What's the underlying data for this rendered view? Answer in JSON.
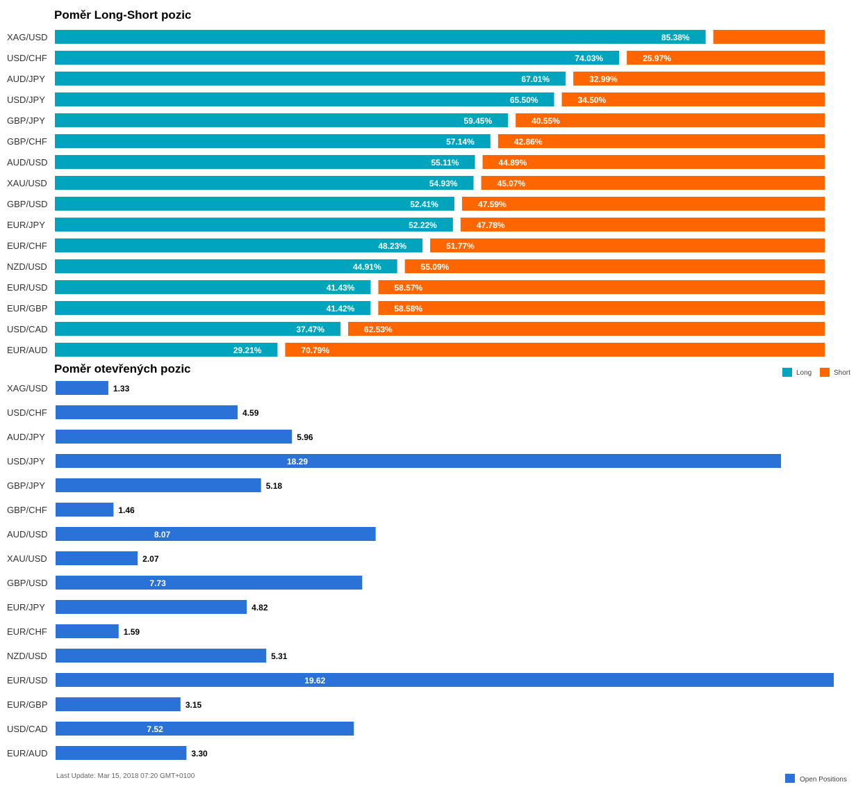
{
  "colors": {
    "long": "#00a5bd",
    "short": "#ff6600",
    "open": "#2a72d8"
  },
  "legend_ls": {
    "long": "Long",
    "short": "Short"
  },
  "legend_open": {
    "open": "Open Positions"
  },
  "footer": {
    "last_update": "Last Update: Mar 15, 2018 07:20 GMT+0100"
  },
  "chart_data": [
    {
      "type": "bar",
      "orientation": "horizontal",
      "stacked": true,
      "title": "Poměr Long-Short pozic",
      "categories": [
        "XAG/USD",
        "USD/CHF",
        "AUD/JPY",
        "USD/JPY",
        "GBP/JPY",
        "GBP/CHF",
        "AUD/USD",
        "XAU/USD",
        "GBP/USD",
        "EUR/JPY",
        "EUR/CHF",
        "NZD/USD",
        "EUR/USD",
        "EUR/GBP",
        "USD/CAD",
        "EUR/AUD"
      ],
      "series": [
        {
          "name": "Long",
          "values": [
            85.38,
            74.03,
            67.01,
            65.5,
            59.45,
            57.14,
            55.11,
            54.93,
            52.41,
            52.22,
            48.23,
            44.91,
            41.43,
            41.42,
            37.47,
            29.21
          ]
        },
        {
          "name": "Short",
          "values": [
            14.62,
            25.97,
            32.99,
            34.5,
            40.55,
            42.86,
            44.89,
            45.07,
            47.59,
            47.78,
            51.77,
            55.09,
            58.57,
            58.58,
            62.53,
            70.79
          ]
        }
      ],
      "show_short_label": [
        false,
        true,
        true,
        true,
        true,
        true,
        true,
        true,
        true,
        true,
        true,
        true,
        true,
        true,
        true,
        true
      ],
      "value_suffix": "%",
      "legend": "bottom-right"
    },
    {
      "type": "bar",
      "orientation": "horizontal",
      "title": "Poměr otevřených pozic",
      "categories": [
        "XAG/USD",
        "USD/CHF",
        "AUD/JPY",
        "USD/JPY",
        "GBP/JPY",
        "GBP/CHF",
        "AUD/USD",
        "XAU/USD",
        "GBP/USD",
        "EUR/JPY",
        "EUR/CHF",
        "NZD/USD",
        "EUR/USD",
        "EUR/GBP",
        "USD/CAD",
        "EUR/AUD"
      ],
      "series": [
        {
          "name": "Open Positions",
          "values": [
            1.33,
            4.59,
            5.96,
            18.29,
            5.18,
            1.46,
            8.07,
            2.07,
            7.73,
            4.82,
            1.59,
            5.31,
            19.62,
            3.15,
            7.52,
            3.3
          ]
        }
      ],
      "xlim": [
        0,
        19.62
      ],
      "legend": "bottom-right"
    }
  ]
}
